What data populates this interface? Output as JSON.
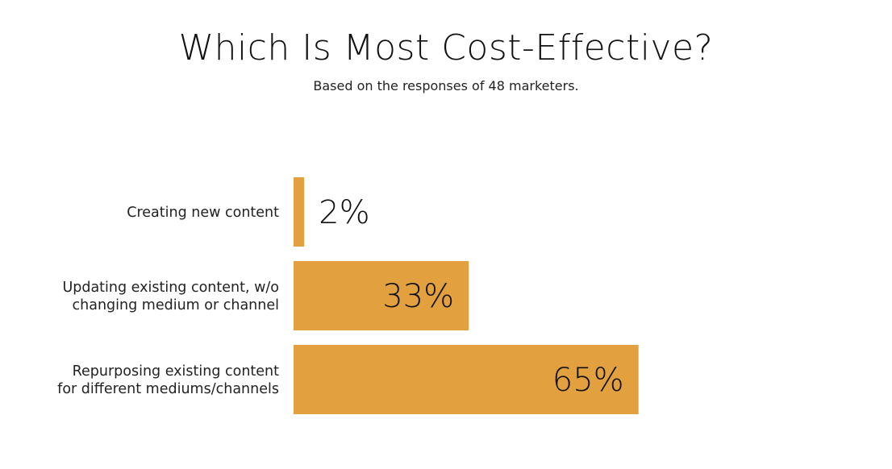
{
  "chart_data": {
    "type": "bar",
    "orientation": "horizontal",
    "title": "Which Is Most Cost-Effective?",
    "subtitle": "Based on the responses of 48 marketers.",
    "categories": [
      [
        "Creating new content"
      ],
      [
        "Updating existing content, w/o",
        "changing medium or channel"
      ],
      [
        "Repurposing existing content",
        "for different mediums/channels"
      ]
    ],
    "values": [
      2,
      33,
      65
    ],
    "value_labels": [
      "2%",
      "33%",
      "65%"
    ],
    "xlim": [
      0,
      100
    ],
    "grid": false,
    "legend": "none",
    "bar_color": "#E2A03F"
  }
}
